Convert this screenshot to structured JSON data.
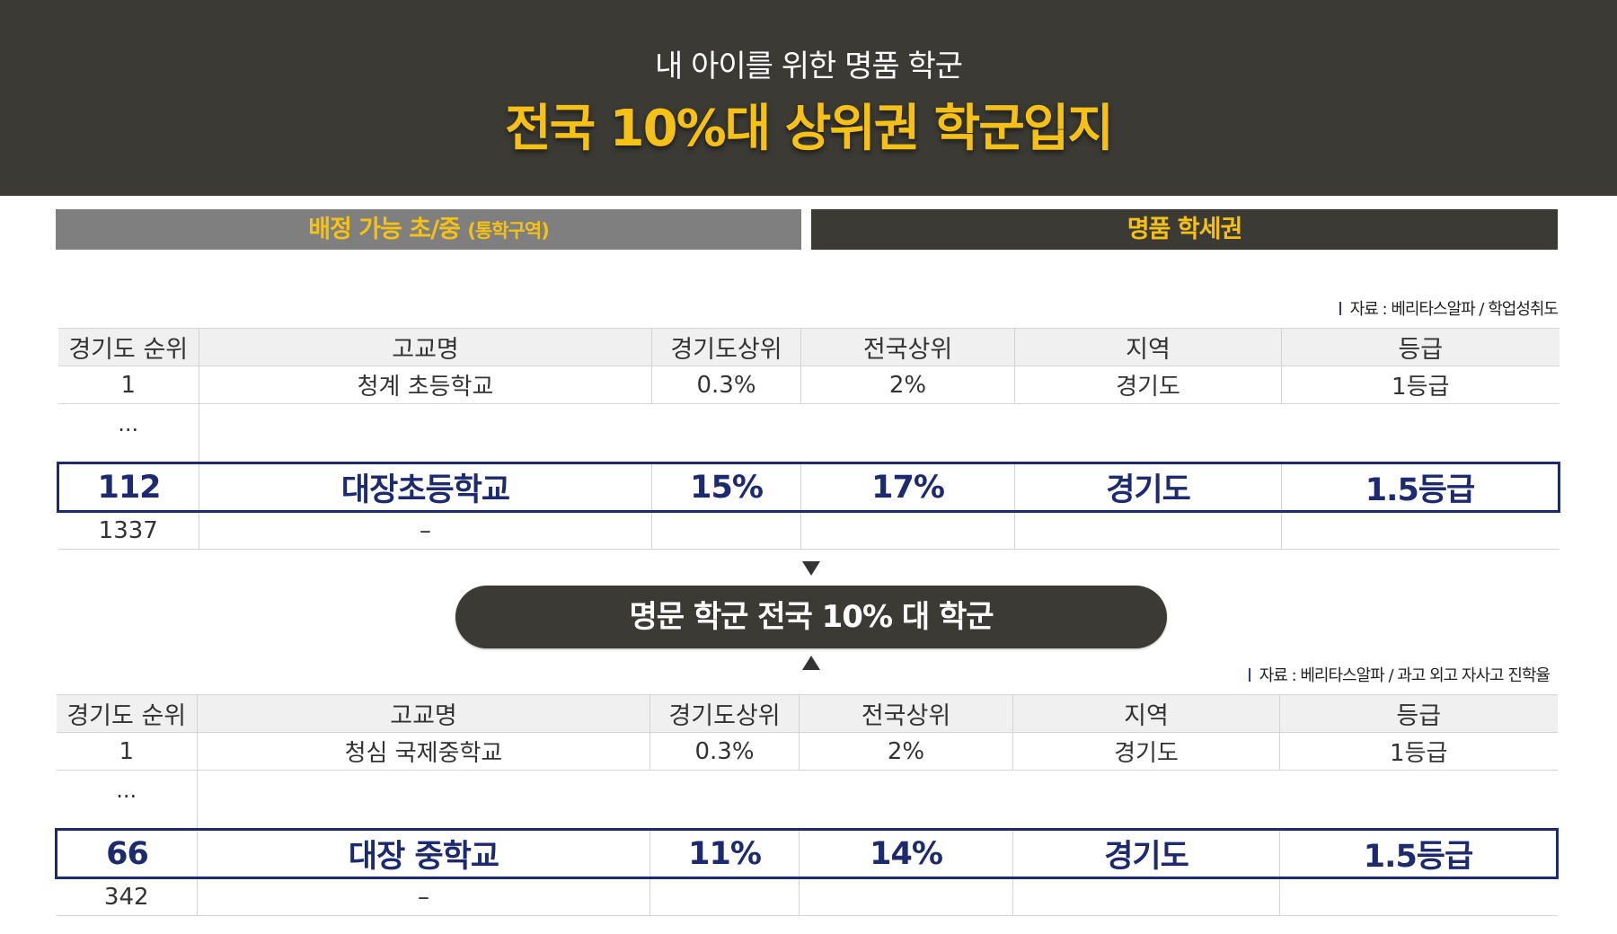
{
  "header": {
    "subtitle": "내 아이를 위한 명품 학군",
    "title": "전국 10%대 상위권 학군입지"
  },
  "tabs": {
    "left_main": "배정 가능 초/중",
    "left_small": "(통학구역)",
    "right": "명품 학세권"
  },
  "table1": {
    "source": "자료 : 베리타스알파 / 학업성취도",
    "headers": [
      "경기도 순위",
      "고교명",
      "경기도상위",
      "전국상위",
      "지역",
      "등급"
    ],
    "row1": [
      "1",
      "청계 초등학교",
      "0.3%",
      "2%",
      "경기도",
      "1등급"
    ],
    "ellipsis": "...",
    "highlight": [
      "112",
      "대장초등학교",
      "15%",
      "17%",
      "경기도",
      "1.5등급"
    ],
    "last": [
      "1337",
      "–"
    ]
  },
  "pill": "명문 학군 전국 10% 대 학군",
  "table2": {
    "source": "자료 : 베리타스알파 / 과고 외고 자사고 진학율",
    "headers": [
      "경기도 순위",
      "고교명",
      "경기도상위",
      "전국상위",
      "지역",
      "등급"
    ],
    "row1": [
      "1",
      "청심 국제중학교",
      "0.3%",
      "2%",
      "경기도",
      "1등급"
    ],
    "ellipsis": "...",
    "highlight": [
      "66",
      "대장 중학교",
      "11%",
      "14%",
      "경기도",
      "1.5등급"
    ],
    "last": [
      "342",
      "–"
    ]
  },
  "colors": {
    "header_bg": "#3b3a35",
    "accent_yellow": "#f6c117",
    "highlight_navy": "#1e2a6e",
    "tab_gray": "#7f7f7f"
  }
}
